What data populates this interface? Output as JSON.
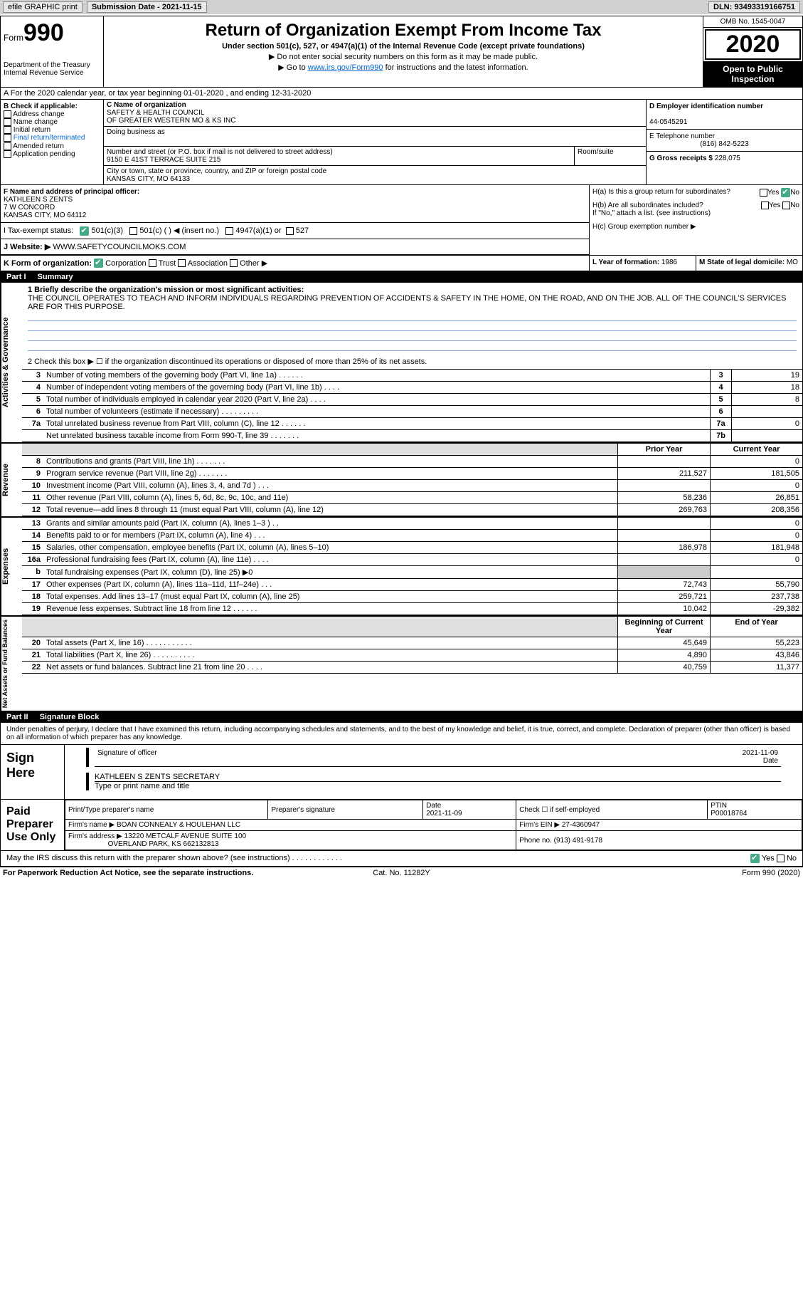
{
  "topbar": {
    "efile_btn": "efile GRAPHIC print",
    "sub_date_lbl": "Submission Date - 2021-11-15",
    "dln": "DLN: 93493319166751"
  },
  "header": {
    "form_label": "Form",
    "form_num": "990",
    "dept": "Department of the Treasury\nInternal Revenue Service",
    "title": "Return of Organization Exempt From Income Tax",
    "subtitle": "Under section 501(c), 527, or 4947(a)(1) of the Internal Revenue Code (except private foundations)",
    "instr1": "▶ Do not enter social security numbers on this form as it may be made public.",
    "instr2_pre": "▶ Go to ",
    "instr2_link": "www.irs.gov/Form990",
    "instr2_post": " for instructions and the latest information.",
    "omb": "OMB No. 1545-0047",
    "year": "2020",
    "open_pub": "Open to Public Inspection"
  },
  "row_a": "A For the 2020 calendar year, or tax year beginning 01-01-2020   , and ending 12-31-2020",
  "section_b": {
    "label": "B Check if applicable:",
    "opts": [
      "Address change",
      "Name change",
      "Initial return",
      "Final return/terminated",
      "Amended return",
      "Application pending"
    ]
  },
  "section_c": {
    "name_lbl": "C Name of organization",
    "name1": "SAFETY & HEALTH COUNCIL",
    "name2": "OF GREATER WESTERN MO & KS INC",
    "dba_lbl": "Doing business as",
    "addr_lbl": "Number and street (or P.O. box if mail is not delivered to street address)",
    "addr": "9150 E 41ST TERRACE SUITE 215",
    "room_lbl": "Room/suite",
    "city_lbl": "City or town, state or province, country, and ZIP or foreign postal code",
    "city": "KANSAS CITY, MO  64133"
  },
  "section_d": {
    "lbl": "D Employer identification number",
    "val": "44-0545291"
  },
  "section_e": {
    "lbl": "E Telephone number",
    "val": "(816) 842-5223"
  },
  "section_g": {
    "lbl": "G Gross receipts $",
    "val": "228,075"
  },
  "section_f": {
    "lbl": "F Name and address of principal officer:",
    "name": "KATHLEEN S ZENTS",
    "addr1": "7 W CONCORD",
    "addr2": "KANSAS CITY, MO  64112"
  },
  "section_h": {
    "ha": "H(a) Is this a group return for subordinates?",
    "hb": "H(b) Are all subordinates included?",
    "hb_note": "If \"No,\" attach a list. (see instructions)",
    "hc": "H(c) Group exemption number ▶",
    "yes": "Yes",
    "no": "No"
  },
  "tax_status": {
    "lbl": "I   Tax-exempt status:",
    "o1": "501(c)(3)",
    "o2": "501(c) (  ) ◀ (insert no.)",
    "o3": "4947(a)(1) or",
    "o4": "527"
  },
  "section_j": {
    "lbl": "J   Website: ▶",
    "val": "WWW.SAFETYCOUNCILMOKS.COM"
  },
  "section_k": {
    "lbl": "K Form of organization:",
    "o1": "Corporation",
    "o2": "Trust",
    "o3": "Association",
    "o4": "Other ▶"
  },
  "section_l": {
    "lbl": "L Year of formation:",
    "val": "1986"
  },
  "section_m": {
    "lbl": "M State of legal domicile:",
    "val": "MO"
  },
  "part1": {
    "num": "Part I",
    "title": "Summary"
  },
  "mission": {
    "lbl": "1  Briefly describe the organization's mission or most significant activities:",
    "txt": "THE COUNCIL OPERATES TO TEACH AND INFORM INDIVIDUALS REGARDING PREVENTION OF ACCIDENTS & SAFETY IN THE HOME, ON THE ROAD, AND ON THE JOB. ALL OF THE COUNCIL'S SERVICES ARE FOR THIS PURPOSE."
  },
  "q2": "2   Check this box ▶ ☐  if the organization discontinued its operations or disposed of more than 25% of its net assets.",
  "gov_lines": [
    {
      "n": "3",
      "t": "Number of voting members of the governing body (Part VI, line 1a)   .    .    .    .    .    .",
      "b": "3",
      "v": "19"
    },
    {
      "n": "4",
      "t": "Number of independent voting members of the governing body (Part VI, line 1b)   .    .    .    .",
      "b": "4",
      "v": "18"
    },
    {
      "n": "5",
      "t": "Total number of individuals employed in calendar year 2020 (Part V, line 2a)   .    .    .    .",
      "b": "5",
      "v": "8"
    },
    {
      "n": "6",
      "t": "Total number of volunteers (estimate if necessary)   .    .    .    .    .    .    .    .    .",
      "b": "6",
      "v": ""
    },
    {
      "n": "7a",
      "t": "Total unrelated business revenue from Part VIII, column (C), line 12   .    .    .    .    .    .",
      "b": "7a",
      "v": "0"
    },
    {
      "n": "",
      "t": "Net unrelated business taxable income from Form 990-T, line 39   .    .    .    .    .    .    .",
      "b": "7b",
      "v": ""
    }
  ],
  "py_cy_hdr": {
    "py": "Prior Year",
    "cy": "Current Year"
  },
  "revenue_lines": [
    {
      "n": "8",
      "t": "Contributions and grants (Part VIII, line 1h)   .    .    .    .    .    .    .",
      "py": "",
      "cy": "0"
    },
    {
      "n": "9",
      "t": "Program service revenue (Part VIII, line 2g)   .    .    .    .    .    .    .",
      "py": "211,527",
      "cy": "181,505"
    },
    {
      "n": "10",
      "t": "Investment income (Part VIII, column (A), lines 3, 4, and 7d )   .    .    .",
      "py": "",
      "cy": "0"
    },
    {
      "n": "11",
      "t": "Other revenue (Part VIII, column (A), lines 5, 6d, 8c, 9c, 10c, and 11e)",
      "py": "58,236",
      "cy": "26,851"
    },
    {
      "n": "12",
      "t": "Total revenue—add lines 8 through 11 (must equal Part VIII, column (A), line 12)",
      "py": "269,763",
      "cy": "208,356"
    }
  ],
  "expense_lines": [
    {
      "n": "13",
      "t": "Grants and similar amounts paid (Part IX, column (A), lines 1–3 )   .    .",
      "py": "",
      "cy": "0"
    },
    {
      "n": "14",
      "t": "Benefits paid to or for members (Part IX, column (A), line 4)   .    .    .",
      "py": "",
      "cy": "0"
    },
    {
      "n": "15",
      "t": "Salaries, other compensation, employee benefits (Part IX, column (A), lines 5–10)",
      "py": "186,978",
      "cy": "181,948"
    },
    {
      "n": "16a",
      "t": "Professional fundraising fees (Part IX, column (A), line 11e)   .    .    .    .",
      "py": "",
      "cy": "0"
    },
    {
      "n": "b",
      "t": "Total fundraising expenses (Part IX, column (D), line 25) ▶0",
      "py": "shade",
      "cy": "shade"
    },
    {
      "n": "17",
      "t": "Other expenses (Part IX, column (A), lines 11a–11d, 11f–24e)   .    .    .",
      "py": "72,743",
      "cy": "55,790"
    },
    {
      "n": "18",
      "t": "Total expenses. Add lines 13–17 (must equal Part IX, column (A), line 25)",
      "py": "259,721",
      "cy": "237,738"
    },
    {
      "n": "19",
      "t": "Revenue less expenses. Subtract line 18 from line 12   .    .    .    .    .    .",
      "py": "10,042",
      "cy": "-29,382"
    }
  ],
  "na_hdr": {
    "py": "Beginning of Current Year",
    "cy": "End of Year"
  },
  "na_lines": [
    {
      "n": "20",
      "t": "Total assets (Part X, line 16)   .    .    .    .    .    .    .    .    .    .    .",
      "py": "45,649",
      "cy": "55,223"
    },
    {
      "n": "21",
      "t": "Total liabilities (Part X, line 26)   .    .    .    .    .    .    .    .    .    .",
      "py": "4,890",
      "cy": "43,846"
    },
    {
      "n": "22",
      "t": "Net assets or fund balances. Subtract line 21 from line 20   .    .    .    .",
      "py": "40,759",
      "cy": "11,377"
    }
  ],
  "part2": {
    "num": "Part II",
    "title": "Signature Block"
  },
  "sig_intro": "Under penalties of perjury, I declare that I have examined this return, including accompanying schedules and statements, and to the best of my knowledge and belief, it is true, correct, and complete. Declaration of preparer (other than officer) is based on all information of which preparer has any knowledge.",
  "sign_here": "Sign Here",
  "sig": {
    "sig_lbl": "Signature of officer",
    "date_lbl": "Date",
    "date_val": "2021-11-09",
    "name": "KATHLEEN S ZENTS SECRETARY",
    "name_lbl": "Type or print name and title"
  },
  "paid_prep": "Paid Preparer Use Only",
  "prep": {
    "h1": "Print/Type preparer's name",
    "h2": "Preparer's signature",
    "h3": "Date",
    "h3v": "2021-11-09",
    "h4": "Check ☐ if self-employed",
    "h5": "PTIN",
    "h5v": "P00018764",
    "firm_lbl": "Firm's name   ▶",
    "firm": "BOAN CONNEALY & HOULEHAN LLC",
    "ein_lbl": "Firm's EIN ▶",
    "ein": "27-4360947",
    "addr_lbl": "Firm's address ▶",
    "addr1": "13220 METCALF AVENUE SUITE 100",
    "addr2": "OVERLAND PARK, KS  662132813",
    "ph_lbl": "Phone no.",
    "ph": "(913) 491-9178"
  },
  "may_irs": "May the IRS discuss this return with the preparer shown above? (see instructions)   .    .    .    .    .    .    .    .    .    .    .    .",
  "footer": {
    "l": "For Paperwork Reduction Act Notice, see the separate instructions.",
    "c": "Cat. No. 11282Y",
    "r": "Form 990 (2020)"
  },
  "side_labels": {
    "gov": "Activities & Governance",
    "rev": "Revenue",
    "exp": "Expenses",
    "na": "Net Assets or Fund Balances"
  }
}
